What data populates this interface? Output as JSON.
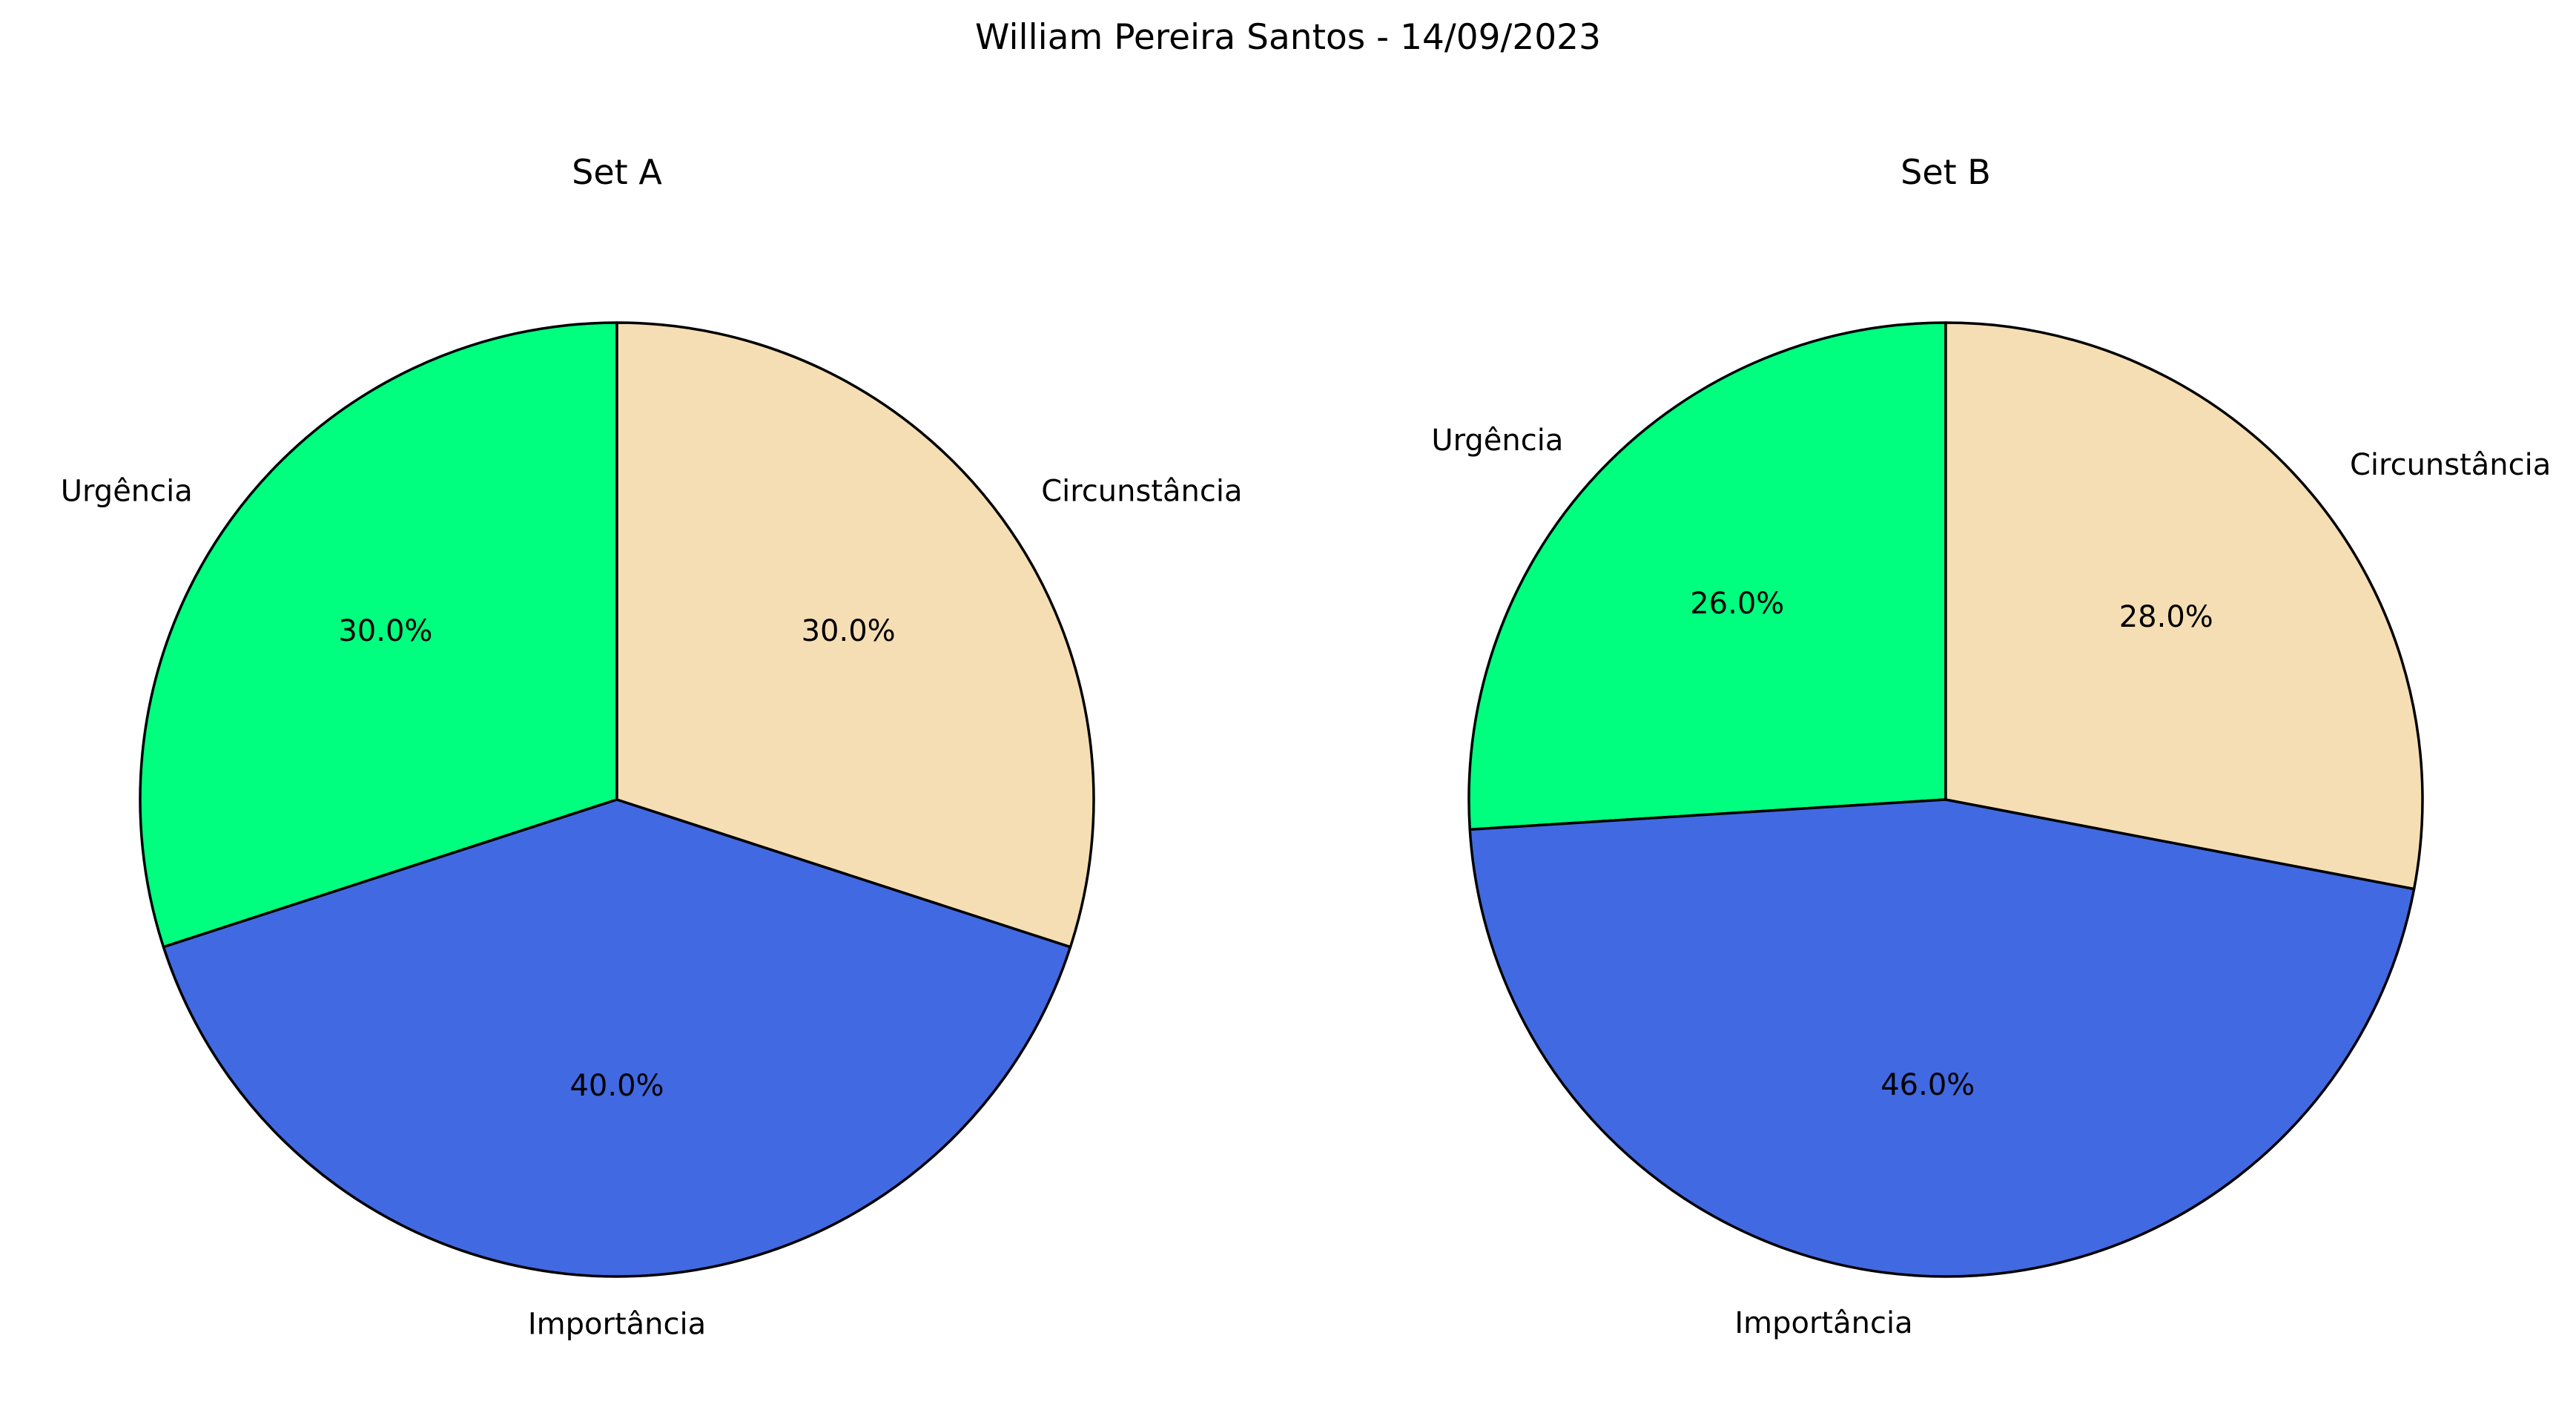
{
  "title": "William Pereira Santos - 14/09/2023",
  "chart_data": [
    {
      "type": "pie",
      "title": "Set A",
      "labels": [
        "Urgência",
        "Importância",
        "Circunstância"
      ],
      "values": [
        30.0,
        40.0,
        30.0
      ],
      "autopct": [
        "30.0%",
        "40.0%",
        "30.0%"
      ],
      "colors": [
        "#00ff7f",
        "#4169e1",
        "#f5deb3"
      ],
      "edgecolor": "#000000",
      "startangle": 90,
      "direction": "counterclockwise"
    },
    {
      "type": "pie",
      "title": "Set B",
      "labels": [
        "Urgência",
        "Importância",
        "Circunstância"
      ],
      "values": [
        26.0,
        46.0,
        28.0
      ],
      "autopct": [
        "26.0%",
        "46.0%",
        "28.0%"
      ],
      "colors": [
        "#00ff7f",
        "#4169e1",
        "#f5deb3"
      ],
      "edgecolor": "#000000",
      "startangle": 90,
      "direction": "counterclockwise"
    }
  ]
}
